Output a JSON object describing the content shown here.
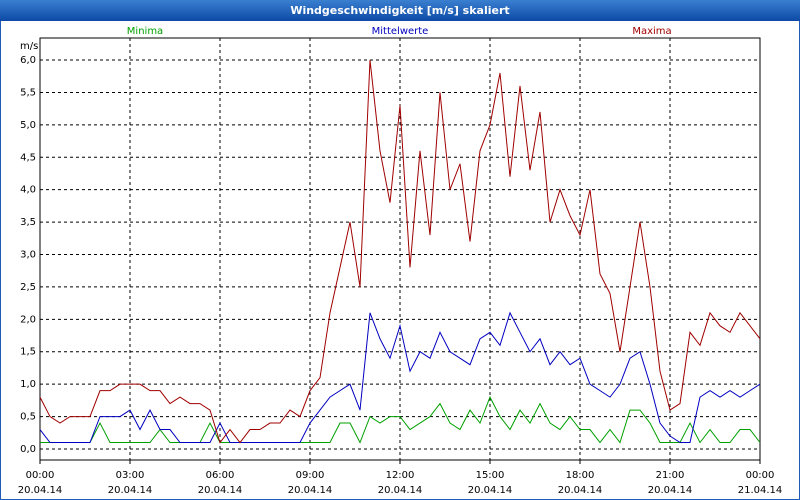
{
  "chart_data": {
    "type": "line",
    "title": "Windgeschwindigkeit [m/s] skaliert",
    "y_unit": "m/s",
    "x": [
      0,
      20,
      40,
      60,
      80,
      100,
      120,
      140,
      160,
      180,
      200,
      220,
      240,
      260,
      280,
      300,
      320,
      340,
      360,
      380,
      400,
      420,
      440,
      460,
      480,
      500,
      520,
      540,
      560,
      580,
      600,
      620,
      640,
      660,
      680,
      700,
      720,
      740,
      760,
      780,
      800,
      820,
      840,
      860,
      880,
      900,
      920,
      940,
      960,
      980,
      1000,
      1020,
      1040,
      1060,
      1080,
      1100,
      1120,
      1140,
      1160,
      1180,
      1200,
      1220,
      1240,
      1260,
      1280,
      1300,
      1320,
      1340,
      1360,
      1380,
      1400,
      1420,
      1440
    ],
    "series": [
      {
        "name": "Minima",
        "color": "#00a000",
        "values": [
          0.1,
          0.1,
          0.1,
          0.1,
          0.1,
          0.1,
          0.4,
          0.1,
          0.1,
          0.1,
          0.1,
          0.1,
          0.3,
          0.1,
          0.1,
          0.1,
          0.1,
          0.4,
          0.1,
          0.1,
          0.1,
          0.1,
          0.1,
          0.1,
          0.1,
          0.1,
          0.1,
          0.1,
          0.1,
          0.1,
          0.4,
          0.4,
          0.1,
          0.5,
          0.4,
          0.5,
          0.5,
          0.3,
          0.4,
          0.5,
          0.7,
          0.4,
          0.3,
          0.6,
          0.4,
          0.8,
          0.5,
          0.3,
          0.6,
          0.4,
          0.7,
          0.4,
          0.3,
          0.5,
          0.3,
          0.3,
          0.1,
          0.3,
          0.1,
          0.6,
          0.6,
          0.4,
          0.1,
          0.1,
          0.1,
          0.4,
          0.1,
          0.3,
          0.1,
          0.1,
          0.3,
          0.3,
          0.1
        ]
      },
      {
        "name": "Mittelwerte",
        "color": "#0000c0",
        "values": [
          0.3,
          0.1,
          0.1,
          0.1,
          0.1,
          0.1,
          0.5,
          0.5,
          0.5,
          0.6,
          0.3,
          0.6,
          0.3,
          0.3,
          0.1,
          0.1,
          0.1,
          0.1,
          0.4,
          0.1,
          0.1,
          0.1,
          0.1,
          0.1,
          0.1,
          0.1,
          0.1,
          0.4,
          0.6,
          0.8,
          0.9,
          1.0,
          0.6,
          2.1,
          1.7,
          1.4,
          1.9,
          1.2,
          1.5,
          1.4,
          1.8,
          1.5,
          1.4,
          1.3,
          1.7,
          1.8,
          1.6,
          2.1,
          1.8,
          1.5,
          1.7,
          1.3,
          1.5,
          1.3,
          1.4,
          1.0,
          0.9,
          0.8,
          1.0,
          1.4,
          1.5,
          1.0,
          0.4,
          0.2,
          0.1,
          0.1,
          0.8,
          0.9,
          0.8,
          0.9,
          0.8,
          0.9,
          1.0
        ]
      },
      {
        "name": "Maxima",
        "color": "#a00000",
        "values": [
          0.8,
          0.5,
          0.4,
          0.5,
          0.5,
          0.5,
          0.9,
          0.9,
          1.0,
          1.0,
          1.0,
          0.9,
          0.9,
          0.7,
          0.8,
          0.7,
          0.7,
          0.6,
          0.1,
          0.3,
          0.1,
          0.3,
          0.3,
          0.4,
          0.4,
          0.6,
          0.5,
          0.9,
          1.1,
          2.1,
          2.8,
          3.5,
          2.5,
          6.0,
          4.6,
          3.8,
          5.3,
          2.8,
          4.6,
          3.3,
          5.5,
          4.0,
          4.4,
          3.2,
          4.6,
          5.0,
          5.8,
          4.2,
          5.6,
          4.3,
          5.2,
          3.5,
          4.0,
          3.6,
          3.3,
          4.0,
          2.7,
          2.4,
          1.5,
          2.5,
          3.5,
          2.5,
          1.2,
          0.6,
          0.7,
          1.8,
          1.6,
          2.1,
          1.9,
          1.8,
          2.1,
          1.9,
          1.7
        ]
      }
    ],
    "xlim": [
      0,
      1440
    ],
    "xticks": [
      {
        "value": 0,
        "label": "00:00"
      },
      {
        "value": 180,
        "label": "03:00"
      },
      {
        "value": 360,
        "label": "06:00"
      },
      {
        "value": 540,
        "label": "09:00"
      },
      {
        "value": 720,
        "label": "12:00"
      },
      {
        "value": 900,
        "label": "15:00"
      },
      {
        "value": 1080,
        "label": "18:00"
      },
      {
        "value": 1260,
        "label": "21:00"
      },
      {
        "value": 1440,
        "label": "00:00"
      }
    ],
    "xtick_dates": [
      "20.04.14",
      "20.04.14",
      "20.04.14",
      "20.04.14",
      "20.04.14",
      "20.04.14",
      "20.04.14",
      "20.04.14",
      "21.04.14"
    ],
    "ylim": [
      -0.17,
      6.34
    ],
    "yticks": [
      {
        "value": 0,
        "label": "0,0"
      },
      {
        "value": 0.5,
        "label": "0,5"
      },
      {
        "value": 1,
        "label": "1,0"
      },
      {
        "value": 1.5,
        "label": "1,5"
      },
      {
        "value": 2,
        "label": "2,0"
      },
      {
        "value": 2.5,
        "label": "2,5"
      },
      {
        "value": 3,
        "label": "3,0"
      },
      {
        "value": 3.5,
        "label": "3,5"
      },
      {
        "value": 4,
        "label": "4,0"
      },
      {
        "value": 4.5,
        "label": "4,5"
      },
      {
        "value": 5,
        "label": "5,0"
      },
      {
        "value": 5.5,
        "label": "5,5"
      },
      {
        "value": 6,
        "label": "6,0"
      }
    ],
    "grid": true
  }
}
